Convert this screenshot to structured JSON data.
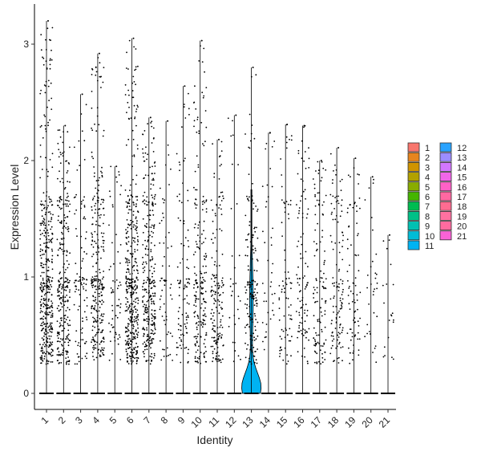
{
  "chart_data": {
    "type": "violin",
    "xlabel": "Identity",
    "ylabel": "Expression Level",
    "ylim": [
      -0.15,
      3.35
    ],
    "yticks": [
      0,
      1,
      2,
      3
    ],
    "grid": false,
    "legend_position": "right",
    "legend_columns": 2,
    "categories": [
      "1",
      "2",
      "3",
      "4",
      "5",
      "6",
      "7",
      "8",
      "9",
      "10",
      "11",
      "12",
      "13",
      "14",
      "15",
      "16",
      "17",
      "18",
      "19",
      "20",
      "21"
    ],
    "colors": [
      "#F8766D",
      "#E7851E",
      "#D09400",
      "#B2A100",
      "#89AC00",
      "#45B500",
      "#00BC51",
      "#00C087",
      "#00C0B2",
      "#00BCD6",
      "#00B3F2",
      "#29A3FF",
      "#9C8DFF",
      "#D277FF",
      "#F166E8",
      "#FF61C7",
      "#FF68A1",
      "#FF6C91",
      "#FF71A0",
      "#FF6B9F",
      "#FA62D6"
    ],
    "max_values": [
      3.2,
      2.3,
      2.57,
      2.92,
      1.95,
      3.05,
      2.37,
      2.34,
      2.64,
      3.03,
      2.18,
      2.39,
      2.8,
      2.24,
      2.31,
      2.3,
      2.0,
      2.11,
      2.02,
      1.86,
      1.36
    ],
    "expressing_density": [
      10,
      7,
      2.5,
      7,
      1.5,
      10,
      7.5,
      1.5,
      2.5,
      5,
      4,
      0.8,
      4,
      1,
      2,
      2.5,
      3,
      3,
      2,
      0.8,
      0.5
    ],
    "violin_category": "13",
    "violin_color": "#00B3F2",
    "violin_range": [
      0,
      1.75
    ]
  }
}
